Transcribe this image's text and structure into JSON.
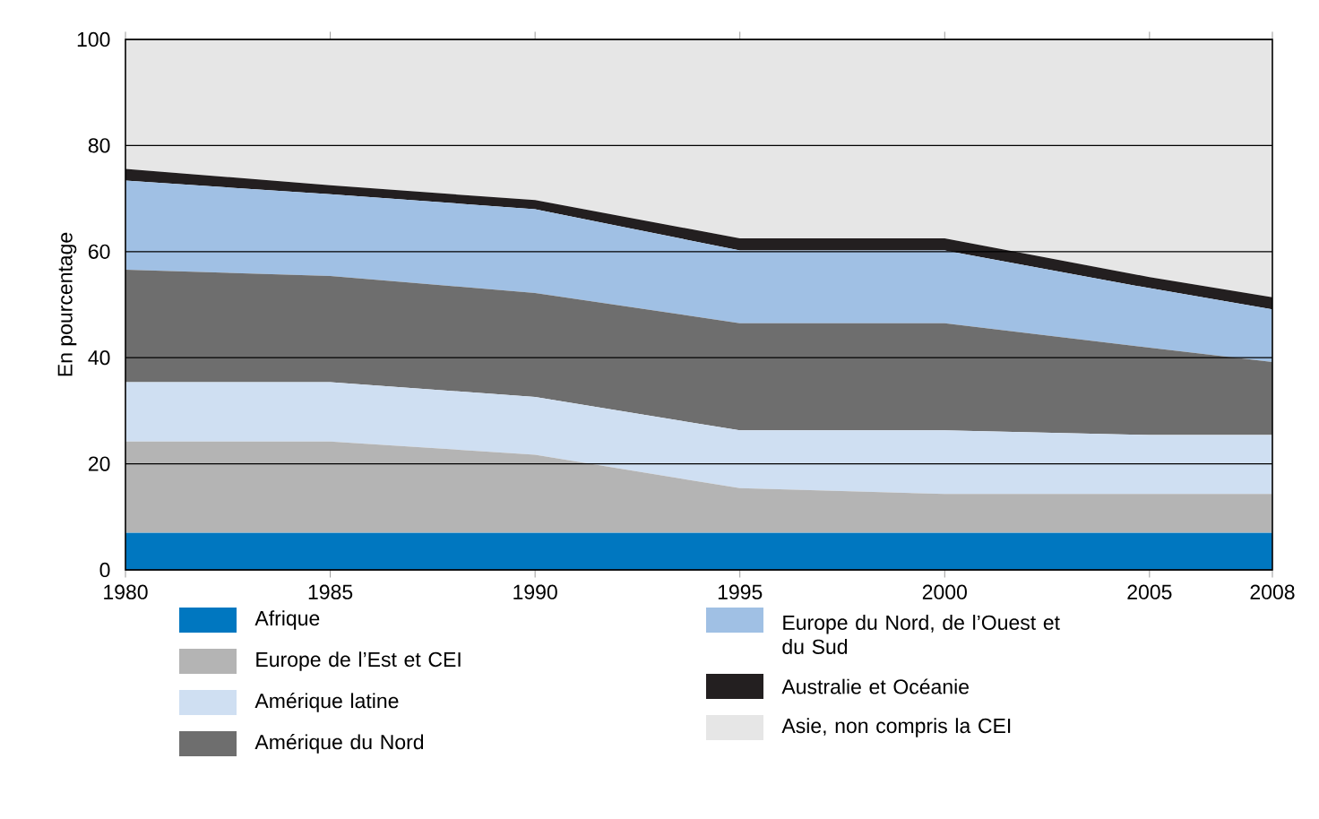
{
  "chart_data": {
    "type": "area",
    "stacked": true,
    "ylabel": "En pourcentage",
    "x": [
      1980,
      1985,
      1990,
      1995,
      2000,
      2005,
      2008
    ],
    "xlim": [
      1980,
      2008
    ],
    "xticks": [
      1980,
      1985,
      1990,
      1995,
      2000,
      2005,
      2008
    ],
    "ylim": [
      0,
      100
    ],
    "yticks": [
      0,
      20,
      40,
      60,
      80,
      100
    ],
    "grid": "y",
    "legend": "bottom",
    "series": [
      {
        "name": "Afrique",
        "color": "#0077c0",
        "values": [
          7,
          7,
          7,
          7,
          7,
          7,
          7
        ]
      },
      {
        "name": "Europe de l’Est et CEI",
        "color": "#b4b4b4",
        "values": [
          17.2,
          17.2,
          14.7,
          8.4,
          7.3,
          7.3,
          7.3
        ]
      },
      {
        "name": "Amérique latine",
        "color": "#cfdff2",
        "values": [
          11.2,
          11.2,
          10.9,
          10.9,
          12.0,
          11.1,
          11.1
        ]
      },
      {
        "name": "Amérique du Nord",
        "color": "#6e6e6e",
        "values": [
          21.2,
          20,
          19.6,
          20.2,
          20.2,
          16.5,
          13.8
        ]
      },
      {
        "name": "Europe du Nord, de l’Ouest et du Sud",
        "color": "#a0c0e4",
        "values": [
          16.8,
          15.4,
          15.8,
          13.7,
          13.7,
          11.2,
          9.9
        ]
      },
      {
        "name": "Australie et Océanie",
        "color": "#231f20",
        "values": [
          2.2,
          1.7,
          1.7,
          2.3,
          2.3,
          2.1,
          2.3
        ]
      },
      {
        "name": "Asie, non compris la CEI",
        "color": "#e6e6e6",
        "values": [
          24.4,
          27.5,
          30.3,
          37.5,
          37.5,
          44.8,
          48.6
        ]
      }
    ]
  }
}
